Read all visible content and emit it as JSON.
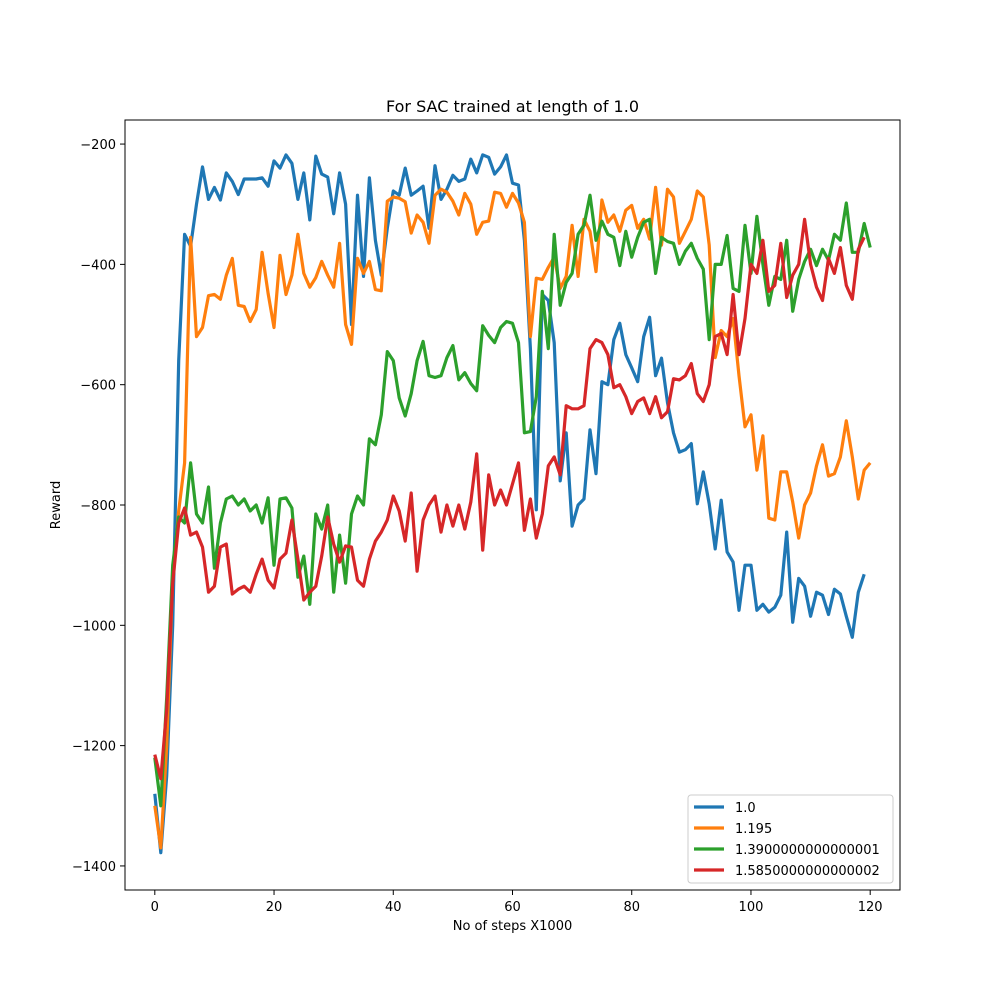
{
  "chart_data": {
    "type": "line",
    "title": "For SAC trained at length of 1.0",
    "xlabel": "No of steps X1000",
    "ylabel": "Reward",
    "xlim": [
      -5,
      125
    ],
    "ylim": [
      -1440,
      -160
    ],
    "xticks": [
      0,
      20,
      40,
      60,
      80,
      100,
      120
    ],
    "yticks": [
      -1400,
      -1200,
      -1000,
      -800,
      -600,
      -400,
      -200
    ],
    "tick_labels": {
      "x": [
        "0",
        "20",
        "40",
        "60",
        "80",
        "100",
        "120"
      ],
      "y": [
        "−1400",
        "−1200",
        "−1000",
        "−800",
        "−600",
        "−400",
        "−200"
      ]
    },
    "legend_position": "lower-right",
    "grid": false,
    "series": [
      {
        "name": "1.0",
        "color": "#1f77b4",
        "values": [
          -1280,
          -1378,
          -1250,
          -1000,
          -560,
          -350,
          -370,
          -300,
          -238,
          -292,
          -272,
          -293,
          -248,
          -262,
          -284,
          -258,
          -258,
          -258,
          -256,
          -270,
          -228,
          -240,
          -218,
          -232,
          -292,
          -248,
          -326,
          -220,
          -250,
          -255,
          -316,
          -248,
          -300,
          -500,
          -285,
          -420,
          -256,
          -360,
          -418,
          -340,
          -278,
          -285,
          -240,
          -285,
          -278,
          -270,
          -340,
          -236,
          -292,
          -275,
          -252,
          -262,
          -258,
          -225,
          -248,
          -218,
          -222,
          -250,
          -238,
          -218,
          -265,
          -268,
          -360,
          -540,
          -808,
          -450,
          -460,
          -530,
          -760,
          -680,
          -835,
          -800,
          -790,
          -675,
          -748,
          -595,
          -600,
          -525,
          -498,
          -550,
          -572,
          -595,
          -520,
          -488,
          -585,
          -556,
          -630,
          -680,
          -712,
          -708,
          -698,
          -798,
          -745,
          -798,
          -873,
          -792,
          -878,
          -895,
          -975,
          -900,
          -900,
          -975,
          -965,
          -978,
          -970,
          -950,
          -845,
          -995,
          -922,
          -935,
          -985,
          -945,
          -950,
          -982,
          -940,
          -948,
          -985,
          -1020,
          -945,
          -915
        ]
      },
      {
        "name": "1.195",
        "color": "#ff7f0e",
        "values": [
          -1300,
          -1370,
          -1200,
          -920,
          -810,
          -730,
          -355,
          -520,
          -505,
          -452,
          -450,
          -458,
          -418,
          -390,
          -468,
          -470,
          -495,
          -475,
          -380,
          -448,
          -505,
          -385,
          -450,
          -418,
          -350,
          -415,
          -438,
          -422,
          -395,
          -418,
          -438,
          -365,
          -500,
          -533,
          -390,
          -415,
          -395,
          -442,
          -444,
          -295,
          -288,
          -290,
          -296,
          -348,
          -318,
          -330,
          -365,
          -285,
          -275,
          -280,
          -295,
          -318,
          -282,
          -300,
          -350,
          -330,
          -328,
          -280,
          -282,
          -305,
          -282,
          -298,
          -330,
          -520,
          -423,
          -425,
          -405,
          -388,
          -440,
          -420,
          -335,
          -420,
          -325,
          -345,
          -412,
          -293,
          -330,
          -318,
          -345,
          -310,
          -302,
          -340,
          -325,
          -358,
          -272,
          -368,
          -275,
          -288,
          -365,
          -345,
          -325,
          -278,
          -288,
          -368,
          -555,
          -510,
          -520,
          -490,
          -585,
          -670,
          -650,
          -742,
          -685,
          -822,
          -825,
          -745,
          -745,
          -795,
          -855,
          -800,
          -780,
          -735,
          -700,
          -752,
          -748,
          -720,
          -660,
          -720,
          -790,
          -742,
          -730
        ]
      },
      {
        "name": "1.3900000000000001",
        "color": "#2ca02c",
        "values": [
          -1220,
          -1300,
          -1120,
          -900,
          -820,
          -830,
          -730,
          -815,
          -830,
          -770,
          -905,
          -830,
          -790,
          -785,
          -800,
          -790,
          -810,
          -800,
          -830,
          -788,
          -900,
          -790,
          -788,
          -805,
          -920,
          -885,
          -965,
          -815,
          -840,
          -800,
          -945,
          -850,
          -930,
          -815,
          -785,
          -800,
          -690,
          -700,
          -650,
          -545,
          -560,
          -622,
          -652,
          -615,
          -560,
          -528,
          -585,
          -588,
          -585,
          -555,
          -535,
          -592,
          -580,
          -598,
          -610,
          -502,
          -518,
          -530,
          -505,
          -495,
          -498,
          -530,
          -680,
          -678,
          -620,
          -445,
          -540,
          -350,
          -468,
          -430,
          -415,
          -350,
          -335,
          -285,
          -360,
          -328,
          -350,
          -355,
          -402,
          -345,
          -388,
          -355,
          -330,
          -325,
          -415,
          -355,
          -362,
          -365,
          -400,
          -378,
          -365,
          -390,
          -408,
          -525,
          -400,
          -400,
          -352,
          -440,
          -445,
          -335,
          -415,
          -320,
          -400,
          -468,
          -420,
          -425,
          -360,
          -478,
          -425,
          -395,
          -375,
          -402,
          -375,
          -393,
          -350,
          -360,
          -298,
          -380,
          -380,
          -332,
          -372
        ]
      },
      {
        "name": "1.5850000000000002",
        "color": "#d62728",
        "values": [
          -1215,
          -1255,
          -1140,
          -930,
          -830,
          -805,
          -850,
          -845,
          -870,
          -945,
          -935,
          -870,
          -865,
          -948,
          -940,
          -935,
          -945,
          -915,
          -890,
          -925,
          -938,
          -890,
          -880,
          -825,
          -890,
          -958,
          -945,
          -935,
          -885,
          -820,
          -865,
          -895,
          -868,
          -870,
          -925,
          -935,
          -890,
          -860,
          -845,
          -825,
          -785,
          -810,
          -860,
          -780,
          -910,
          -825,
          -800,
          -785,
          -845,
          -800,
          -835,
          -800,
          -840,
          -795,
          -715,
          -875,
          -750,
          -800,
          -775,
          -800,
          -765,
          -730,
          -842,
          -790,
          -855,
          -815,
          -735,
          -720,
          -750,
          -635,
          -640,
          -640,
          -635,
          -540,
          -525,
          -530,
          -550,
          -605,
          -600,
          -620,
          -648,
          -628,
          -622,
          -648,
          -620,
          -655,
          -645,
          -590,
          -592,
          -585,
          -565,
          -615,
          -628,
          -600,
          -520,
          -515,
          -550,
          -450,
          -550,
          -490,
          -400,
          -415,
          -360,
          -445,
          -435,
          -365,
          -455,
          -418,
          -400,
          -325,
          -400,
          -438,
          -460,
          -390,
          -415,
          -372,
          -435,
          -458,
          -375,
          -355
        ]
      }
    ]
  }
}
